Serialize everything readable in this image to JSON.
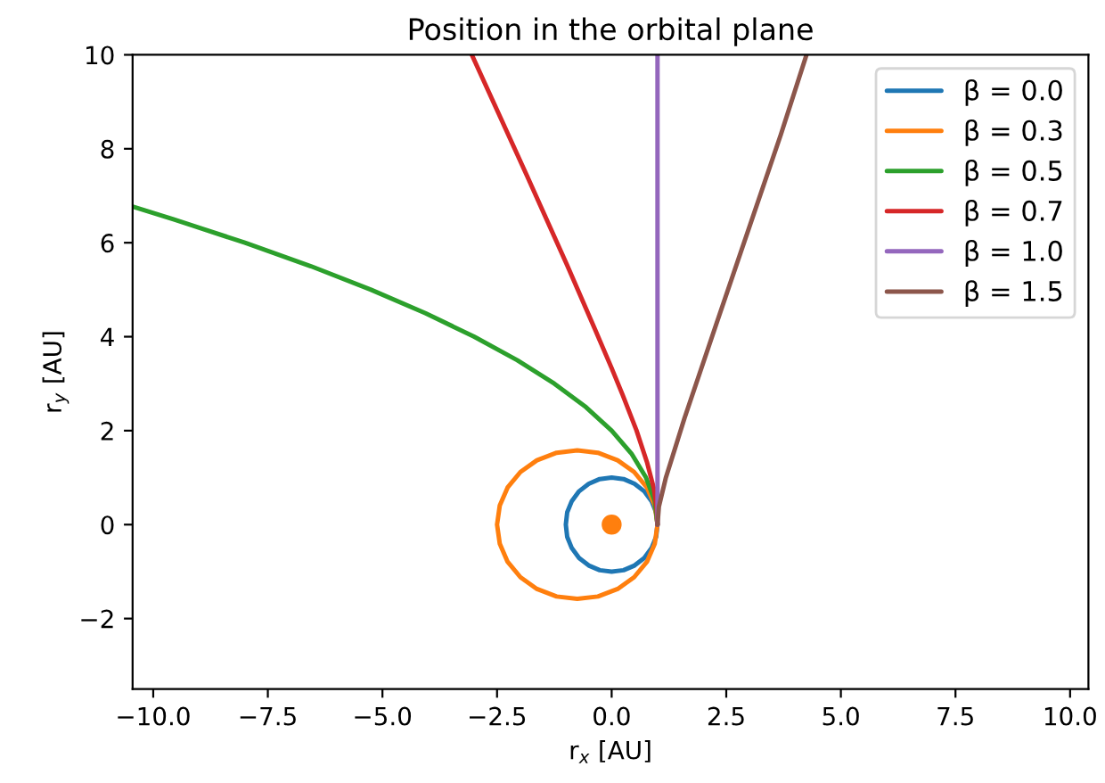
{
  "chart_data": {
    "type": "line",
    "title": "Position in the orbital plane",
    "xlabel": "r$_{x}$ [AU]",
    "ylabel": "r$_{y}$ [AU]",
    "xlim": [
      -10.45,
      10.4
    ],
    "ylim": [
      -3.5,
      10
    ],
    "xticks": [
      {
        "value": -10,
        "label": "−10.0"
      },
      {
        "value": -7.5,
        "label": "−7.5"
      },
      {
        "value": -5,
        "label": "−5.0"
      },
      {
        "value": -2.5,
        "label": "−2.5"
      },
      {
        "value": 0,
        "label": "0.0"
      },
      {
        "value": 2.5,
        "label": "2.5"
      },
      {
        "value": 5,
        "label": "5.0"
      },
      {
        "value": 7.5,
        "label": "7.5"
      },
      {
        "value": 10,
        "label": "10.0"
      }
    ],
    "yticks": [
      {
        "value": -2,
        "label": "−2"
      },
      0,
      2,
      4,
      6,
      8,
      10
    ],
    "grid": false,
    "legend": "top right",
    "marker": "none",
    "line_style": "solid",
    "series": [
      {
        "name": "β = 0.0",
        "color": "#1f77b4",
        "x": [
          1,
          0.97,
          0.87,
          0.71,
          0.5,
          0.26,
          0,
          -0.26,
          -0.5,
          -0.71,
          -0.87,
          -0.97,
          -1,
          null,
          -1,
          -0.97,
          -0.87,
          -0.71,
          -0.5,
          -0.26,
          0,
          0.26,
          0.5,
          0.71,
          0.87,
          0.97,
          1
        ],
        "values": [
          0,
          0.26,
          0.5,
          0.71,
          0.87,
          0.97,
          1,
          0.97,
          0.87,
          0.71,
          0.5,
          0.26,
          0,
          null,
          0,
          -0.26,
          -0.5,
          -0.71,
          -0.87,
          -0.97,
          -1,
          -0.97,
          -0.87,
          -0.71,
          -0.5,
          -0.26,
          0
        ]
      },
      {
        "name": "β = 0.3",
        "color": "#ff7f0e",
        "x": [
          1.0,
          0.94,
          0.77,
          0.49,
          0.13,
          -0.3,
          -0.75,
          -1.2,
          -1.63,
          -1.99,
          -2.27,
          -2.44,
          -2.5,
          null,
          -2.5,
          -2.44,
          -2.27,
          -1.99,
          -1.63,
          -1.2,
          -0.75,
          -0.3,
          0.13,
          0.49,
          0.77,
          0.94,
          1.0
        ],
        "values": [
          0,
          0.41,
          0.79,
          1.12,
          1.37,
          1.53,
          1.58,
          1.53,
          1.37,
          1.12,
          0.79,
          0.41,
          0,
          null,
          0,
          -0.41,
          -0.79,
          -1.12,
          -1.37,
          -1.53,
          -1.58,
          -1.53,
          -1.37,
          -1.12,
          -0.79,
          -0.41,
          0
        ]
      },
      {
        "name": "β = 0.5",
        "color": "#2ca02c",
        "x": [
          1,
          0.94,
          0.75,
          0.44,
          0,
          -0.56,
          -1.25,
          -2.06,
          -3,
          -4.06,
          -5.25,
          -6.56,
          -8,
          -9.56,
          -10.45
        ],
        "values": [
          0,
          0.5,
          1,
          1.5,
          2,
          2.5,
          3,
          3.5,
          4,
          4.5,
          5,
          5.5,
          6,
          6.5,
          6.77
        ]
      },
      {
        "name": "β = 0.7",
        "color": "#d62728",
        "x": [
          1,
          0.98,
          0.92,
          0.77,
          0.54,
          0.24,
          0,
          -0.37,
          -0.97,
          -1.85,
          -3.05
        ],
        "values": [
          0,
          0.36,
          0.77,
          1.33,
          2.01,
          2.76,
          3.33,
          4.17,
          5.52,
          7.43,
          10
        ]
      },
      {
        "name": "β = 1.0",
        "color": "#9467bd",
        "x": [
          1,
          1
        ],
        "values": [
          0,
          10
        ]
      },
      {
        "name": "β = 1.5",
        "color": "#8c564b",
        "x": [
          1,
          1.03,
          1.18,
          1.59,
          2.3,
          3.69,
          4.25
        ],
        "values": [
          0,
          0.38,
          0.99,
          2.27,
          4.32,
          8.3,
          10
        ]
      },
      {
        "type": "scatter",
        "color": "#ff7f0e",
        "marker": "circle",
        "x": [
          0
        ],
        "values": [
          0
        ]
      }
    ]
  }
}
